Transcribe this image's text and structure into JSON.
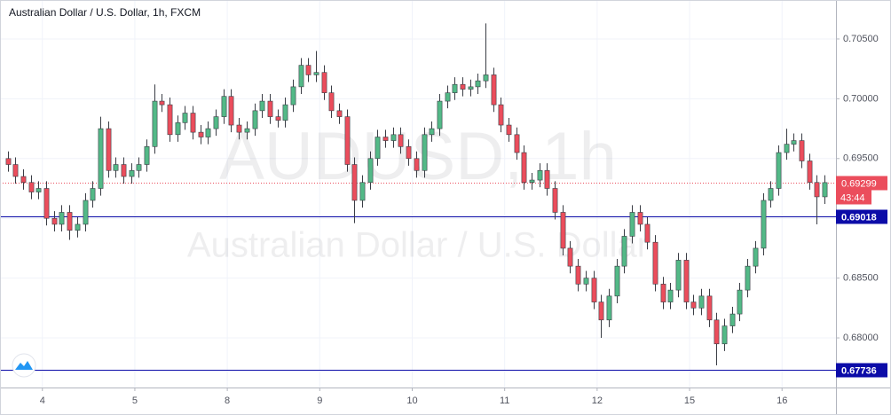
{
  "chart_data": {
    "type": "candlestick",
    "title": "Australian Dollar / U.S. Dollar, 1h, FXCM",
    "watermark": "AUDUSD, 1h",
    "watermark_subtitle": "Australian Dollar / U.S. Dollar",
    "up_color": "#53b987",
    "down_color": "#eb4d5c",
    "grid": true,
    "xlim": [
      -1,
      107.5
    ],
    "ylim": [
      0.67585,
      0.70826
    ],
    "xticks": [
      {
        "value": 4.5,
        "label": "4"
      },
      {
        "value": 16.5,
        "label": "5"
      },
      {
        "value": 28.5,
        "label": "8"
      },
      {
        "value": 40.5,
        "label": "9"
      },
      {
        "value": 52.5,
        "label": "10"
      },
      {
        "value": 64.5,
        "label": "11"
      },
      {
        "value": 76.5,
        "label": "12"
      },
      {
        "value": 88.5,
        "label": "15"
      },
      {
        "value": 100.5,
        "label": "16"
      }
    ],
    "yticks": [
      {
        "value": 0.68,
        "label": "0.68000"
      },
      {
        "value": 0.685,
        "label": "0.68500"
      },
      {
        "value": 0.69,
        "label": "0.69000"
      },
      {
        "value": 0.695,
        "label": "0.69500"
      },
      {
        "value": 0.7,
        "label": "0.70000"
      },
      {
        "value": 0.705,
        "label": "0.70500"
      }
    ],
    "last_price": {
      "value": 0.69299,
      "color": "#eb4d5c",
      "countdown": "43:44"
    },
    "horizontal_lines": [
      {
        "value": 0.69018,
        "color": "#0c0ca8"
      },
      {
        "value": 0.67736,
        "color": "#0c0ca8"
      }
    ],
    "open": [
      0.695,
      0.6945,
      0.6935,
      0.693,
      0.6922,
      0.6925,
      0.69,
      0.6895,
      0.6905,
      0.689,
      0.6895,
      0.6915,
      0.6925,
      0.6975,
      0.694,
      0.6945,
      0.6935,
      0.694,
      0.6945,
      0.696,
      0.6998,
      0.6995,
      0.697,
      0.698,
      0.6988,
      0.6972,
      0.6968,
      0.6975,
      0.6985,
      0.7002,
      0.6978,
      0.6972,
      0.6975,
      0.699,
      0.6998,
      0.6985,
      0.6982,
      0.6995,
      0.701,
      0.7028,
      0.702,
      0.7022,
      0.7005,
      0.699,
      0.6985,
      0.6945,
      0.6915,
      0.693,
      0.695,
      0.6968,
      0.6965,
      0.697,
      0.696,
      0.695,
      0.694,
      0.697,
      0.6975,
      0.6998,
      0.7005,
      0.7012,
      0.7008,
      0.701,
      0.7015,
      0.702,
      0.6995,
      0.6978,
      0.697,
      0.6955,
      0.693,
      0.6932,
      0.694,
      0.6925,
      0.6905,
      0.6875,
      0.686,
      0.6845,
      0.685,
      0.683,
      0.6815,
      0.6835,
      0.686,
      0.6885,
      0.6905,
      0.6895,
      0.688,
      0.6845,
      0.683,
      0.684,
      0.6865,
      0.683,
      0.6825,
      0.6835,
      0.6815,
      0.6795,
      0.681,
      0.682,
      0.684,
      0.686,
      0.6875,
      0.6915,
      0.6925,
      0.6955,
      0.6962,
      0.6965,
      0.6948,
      0.693,
      0.6918
    ],
    "high": [
      0.6956,
      0.6951,
      0.6941,
      0.6936,
      0.6931,
      0.6931,
      0.6906,
      0.6911,
      0.6911,
      0.6901,
      0.6921,
      0.6931,
      0.6985,
      0.6981,
      0.6951,
      0.6951,
      0.6946,
      0.6951,
      0.6966,
      0.7012,
      0.7004,
      0.7001,
      0.6986,
      0.6994,
      0.6994,
      0.6978,
      0.6981,
      0.6991,
      0.7008,
      0.7008,
      0.6984,
      0.6981,
      0.6996,
      0.7004,
      0.7004,
      0.6991,
      0.7001,
      0.7016,
      0.7034,
      0.7034,
      0.704,
      0.7028,
      0.7011,
      0.6996,
      0.6991,
      0.6951,
      0.6936,
      0.6956,
      0.6974,
      0.6974,
      0.6976,
      0.6976,
      0.6966,
      0.6956,
      0.6976,
      0.6981,
      0.7004,
      0.7011,
      0.7018,
      0.7018,
      0.7016,
      0.7021,
      0.7063,
      0.7026,
      0.7001,
      0.6984,
      0.6976,
      0.6961,
      0.6938,
      0.6946,
      0.6946,
      0.6931,
      0.6911,
      0.6881,
      0.6866,
      0.6856,
      0.6856,
      0.6836,
      0.6841,
      0.6866,
      0.6891,
      0.6911,
      0.6911,
      0.6901,
      0.6886,
      0.6851,
      0.6846,
      0.6871,
      0.6871,
      0.6836,
      0.6841,
      0.6841,
      0.6821,
      0.6816,
      0.6826,
      0.6846,
      0.6866,
      0.6881,
      0.6921,
      0.6931,
      0.6961,
      0.6975,
      0.6971,
      0.6971,
      0.6954,
      0.6936,
      0.6936
    ],
    "low": [
      0.6939,
      0.6929,
      0.6924,
      0.6916,
      0.6916,
      0.6894,
      0.6889,
      0.6889,
      0.6882,
      0.6884,
      0.6889,
      0.6909,
      0.6919,
      0.6934,
      0.6934,
      0.6929,
      0.6929,
      0.6934,
      0.6939,
      0.6954,
      0.6989,
      0.6964,
      0.6964,
      0.6974,
      0.6966,
      0.6962,
      0.6962,
      0.6969,
      0.6979,
      0.6972,
      0.6966,
      0.6966,
      0.6969,
      0.6984,
      0.6979,
      0.6976,
      0.6976,
      0.6989,
      0.7004,
      0.7014,
      0.7014,
      0.6999,
      0.6984,
      0.6979,
      0.6939,
      0.6896,
      0.6909,
      0.6924,
      0.6944,
      0.6959,
      0.6959,
      0.6954,
      0.6944,
      0.6934,
      0.6934,
      0.6964,
      0.6969,
      0.6992,
      0.6999,
      0.7002,
      0.7002,
      0.7004,
      0.7009,
      0.6989,
      0.6972,
      0.6964,
      0.6949,
      0.6924,
      0.6924,
      0.6926,
      0.6919,
      0.6899,
      0.6869,
      0.6854,
      0.6839,
      0.6839,
      0.6824,
      0.68,
      0.6809,
      0.6829,
      0.6854,
      0.6879,
      0.6889,
      0.6874,
      0.6839,
      0.6824,
      0.6824,
      0.6834,
      0.6824,
      0.6819,
      0.6819,
      0.6809,
      0.6777,
      0.6789,
      0.6804,
      0.6814,
      0.6834,
      0.6854,
      0.6869,
      0.6909,
      0.6919,
      0.6949,
      0.6956,
      0.6942,
      0.6924,
      0.6895,
      0.6912
    ],
    "close": [
      0.6945,
      0.6935,
      0.693,
      0.6922,
      0.6925,
      0.69,
      0.6895,
      0.6905,
      0.689,
      0.6895,
      0.6915,
      0.6925,
      0.6975,
      0.694,
      0.6945,
      0.6935,
      0.694,
      0.6945,
      0.696,
      0.6998,
      0.6995,
      0.697,
      0.698,
      0.6988,
      0.6972,
      0.6968,
      0.6975,
      0.6985,
      0.7002,
      0.6978,
      0.6972,
      0.6975,
      0.699,
      0.6998,
      0.6985,
      0.6982,
      0.6995,
      0.701,
      0.7028,
      0.702,
      0.7022,
      0.7005,
      0.699,
      0.6985,
      0.6945,
      0.6915,
      0.693,
      0.695,
      0.6968,
      0.6965,
      0.697,
      0.696,
      0.695,
      0.694,
      0.697,
      0.6975,
      0.6998,
      0.7005,
      0.7012,
      0.7008,
      0.701,
      0.7015,
      0.702,
      0.6995,
      0.6978,
      0.697,
      0.6955,
      0.693,
      0.6932,
      0.694,
      0.6925,
      0.6905,
      0.6875,
      0.686,
      0.6845,
      0.685,
      0.683,
      0.6815,
      0.6835,
      0.686,
      0.6885,
      0.6905,
      0.6895,
      0.688,
      0.6845,
      0.683,
      0.684,
      0.6865,
      0.683,
      0.6825,
      0.6835,
      0.6815,
      0.6795,
      0.681,
      0.682,
      0.684,
      0.686,
      0.6875,
      0.6915,
      0.6925,
      0.6955,
      0.6962,
      0.6965,
      0.6948,
      0.693,
      0.6918,
      0.69299
    ]
  }
}
